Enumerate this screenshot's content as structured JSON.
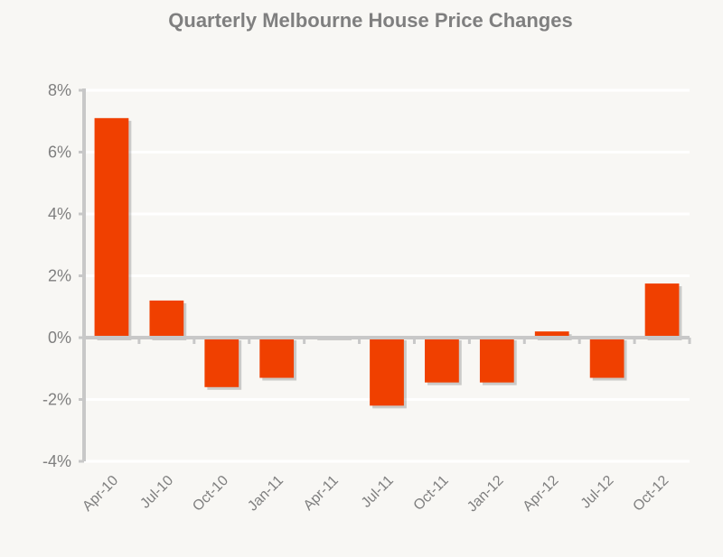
{
  "chart_data": {
    "type": "bar",
    "title": "Quarterly Melbourne House Price Changes",
    "xlabel": "",
    "ylabel": "",
    "categories": [
      "Apr-10",
      "Jul-10",
      "Oct-10",
      "Jan-11",
      "Apr-11",
      "Jul-11",
      "Oct-11",
      "Jan-12",
      "Apr-12",
      "Jul-12",
      "Oct-12"
    ],
    "values": [
      7.1,
      1.2,
      -1.6,
      -1.3,
      0.05,
      -2.2,
      -1.45,
      -1.45,
      0.2,
      -1.3,
      1.75
    ],
    "ylim": [
      -4,
      8
    ],
    "yticks": [
      -4,
      -2,
      0,
      2,
      4,
      6,
      8
    ],
    "ytick_labels": [
      "-4%",
      "-2%",
      "0%",
      "2%",
      "4%",
      "6%",
      "8%"
    ],
    "grid": true,
    "legend": "none",
    "colors": {
      "bar": "#f04000",
      "grid": "#ffffff",
      "axis": "#c8c8c8",
      "text": "#7f7f7f"
    }
  }
}
